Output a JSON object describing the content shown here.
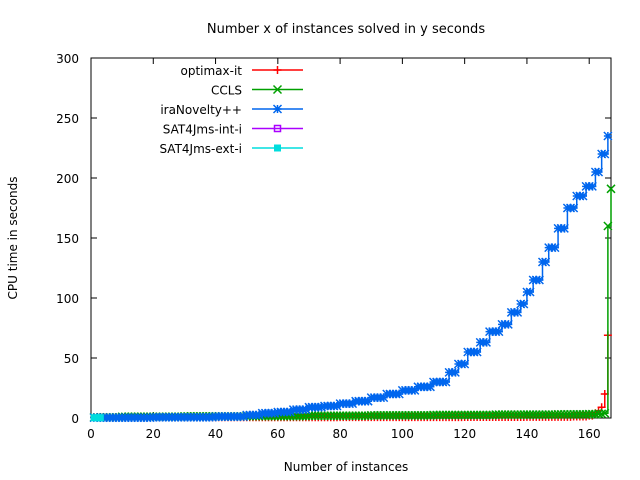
{
  "chart_data": {
    "type": "line",
    "title": "Number x of instances solved in y seconds",
    "xlabel": "Number of instances",
    "ylabel": "CPU time in seconds",
    "xlim": [
      0,
      167
    ],
    "ylim": [
      0,
      300
    ],
    "xticks": [
      0,
      20,
      40,
      60,
      80,
      100,
      120,
      140,
      160
    ],
    "yticks": [
      0,
      50,
      100,
      150,
      200,
      250,
      300
    ],
    "legend_position": "top-left",
    "grid": false,
    "series": [
      {
        "name": "optimax-it",
        "color": "#ff0000",
        "marker": "plus",
        "points": [
          [
            1,
            0.5
          ],
          [
            20,
            0.5
          ],
          [
            40,
            0.6
          ],
          [
            60,
            0.6
          ],
          [
            80,
            0.7
          ],
          [
            100,
            0.7
          ],
          [
            120,
            0.8
          ],
          [
            140,
            0.9
          ],
          [
            155,
            1.2
          ],
          [
            160,
            2
          ],
          [
            162,
            4
          ],
          [
            163,
            6
          ],
          [
            164,
            9
          ],
          [
            165,
            20
          ],
          [
            166,
            45
          ],
          [
            166,
            69
          ]
        ]
      },
      {
        "name": "CCLS",
        "color": "#00a000",
        "marker": "cross",
        "points": [
          [
            1,
            0.5
          ],
          [
            10,
            1
          ],
          [
            30,
            1.3
          ],
          [
            50,
            1.6
          ],
          [
            70,
            1.9
          ],
          [
            90,
            2.2
          ],
          [
            110,
            2.5
          ],
          [
            130,
            2.8
          ],
          [
            150,
            3
          ],
          [
            160,
            3.2
          ],
          [
            163,
            3.5
          ],
          [
            165,
            4
          ],
          [
            166,
            60
          ],
          [
            166,
            160
          ],
          [
            167,
            191
          ]
        ]
      },
      {
        "name": "iraNovelty++",
        "color": "#0066ee",
        "marker": "star",
        "points": [
          [
            1,
            0.3
          ],
          [
            20,
            0.6
          ],
          [
            40,
            1.2
          ],
          [
            50,
            2.5
          ],
          [
            55,
            4
          ],
          [
            60,
            5
          ],
          [
            65,
            7
          ],
          [
            70,
            9
          ],
          [
            75,
            10
          ],
          [
            80,
            12
          ],
          [
            85,
            14
          ],
          [
            90,
            17
          ],
          [
            95,
            20
          ],
          [
            100,
            23
          ],
          [
            105,
            26
          ],
          [
            110,
            30
          ],
          [
            115,
            38
          ],
          [
            118,
            45
          ],
          [
            121,
            55
          ],
          [
            125,
            63
          ],
          [
            128,
            72
          ],
          [
            132,
            78
          ],
          [
            135,
            88
          ],
          [
            138,
            95
          ],
          [
            140,
            105
          ],
          [
            142,
            115
          ],
          [
            145,
            130
          ],
          [
            147,
            142
          ],
          [
            150,
            158
          ],
          [
            153,
            175
          ],
          [
            156,
            185
          ],
          [
            159,
            193
          ],
          [
            162,
            205
          ],
          [
            164,
            220
          ],
          [
            166,
            235
          ]
        ]
      },
      {
        "name": "SAT4Jms-int-i",
        "color": "#aa00ff",
        "marker": "square",
        "points": []
      },
      {
        "name": "SAT4Jms-ext-i",
        "color": "#00dddd",
        "marker": "filled-square",
        "points": [
          [
            1,
            0.2
          ],
          [
            2,
            0.2
          ],
          [
            3,
            0.2
          ]
        ]
      }
    ]
  }
}
